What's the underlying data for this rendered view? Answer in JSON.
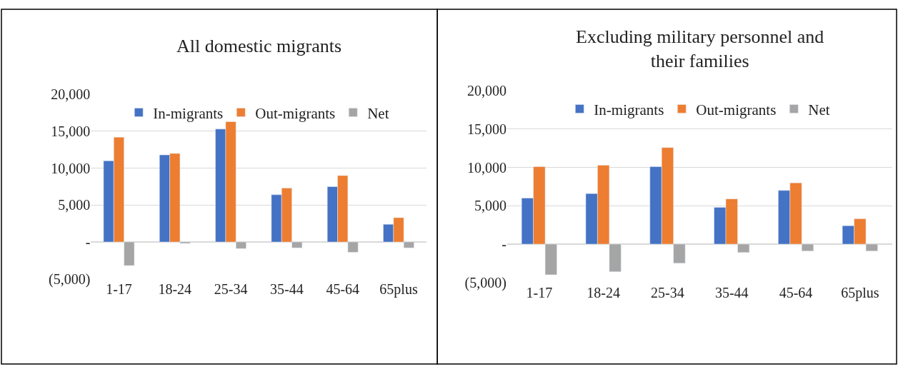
{
  "chart_data": [
    {
      "type": "bar",
      "title": "All domestic migrants",
      "categories": [
        "1-17",
        "18-24",
        "25-34",
        "35-44",
        "45-64",
        "65plus"
      ],
      "series": [
        {
          "name": "In-migrants",
          "color": "#4472c4",
          "values": [
            11000,
            11800,
            15300,
            6400,
            7500,
            2400
          ]
        },
        {
          "name": "Out-migrants",
          "color": "#ed7d31",
          "values": [
            14200,
            12000,
            16300,
            7300,
            9000,
            3300
          ]
        },
        {
          "name": "Net",
          "color": "#a5a5a5",
          "values": [
            -3200,
            -200,
            -900,
            -800,
            -1400,
            -800
          ]
        }
      ],
      "ylim": [
        -5000,
        20000
      ],
      "yticks": [
        {
          "value": -5000,
          "label": "(5,000)"
        },
        {
          "value": 0,
          "label": "-"
        },
        {
          "value": 5000,
          "label": "5,000"
        },
        {
          "value": 10000,
          "label": "10,000"
        },
        {
          "value": 15000,
          "label": "15,000"
        },
        {
          "value": 20000,
          "label": "20,000"
        }
      ],
      "grid": "y",
      "legend": "top"
    },
    {
      "type": "bar",
      "title": "Excluding military personnel and\ntheir families",
      "categories": [
        "1-17",
        "18-24",
        "25-34",
        "35-44",
        "45-64",
        "65plus"
      ],
      "series": [
        {
          "name": "In-migrants",
          "color": "#4472c4",
          "values": [
            6000,
            6600,
            10100,
            4800,
            7000,
            2400
          ]
        },
        {
          "name": "Out-migrants",
          "color": "#ed7d31",
          "values": [
            10100,
            10300,
            12600,
            5900,
            8000,
            3300
          ]
        },
        {
          "name": "Net",
          "color": "#a5a5a5",
          "values": [
            -4000,
            -3600,
            -2500,
            -1100,
            -900,
            -900
          ]
        }
      ],
      "ylim": [
        -5000,
        20000
      ],
      "yticks": [
        {
          "value": -5000,
          "label": "(5,000)"
        },
        {
          "value": 0,
          "label": "-"
        },
        {
          "value": 5000,
          "label": "5,000"
        },
        {
          "value": 10000,
          "label": "10,000"
        },
        {
          "value": 15000,
          "label": "15,000"
        },
        {
          "value": 20000,
          "label": "20,000"
        }
      ],
      "grid": "y",
      "legend": "top"
    }
  ]
}
